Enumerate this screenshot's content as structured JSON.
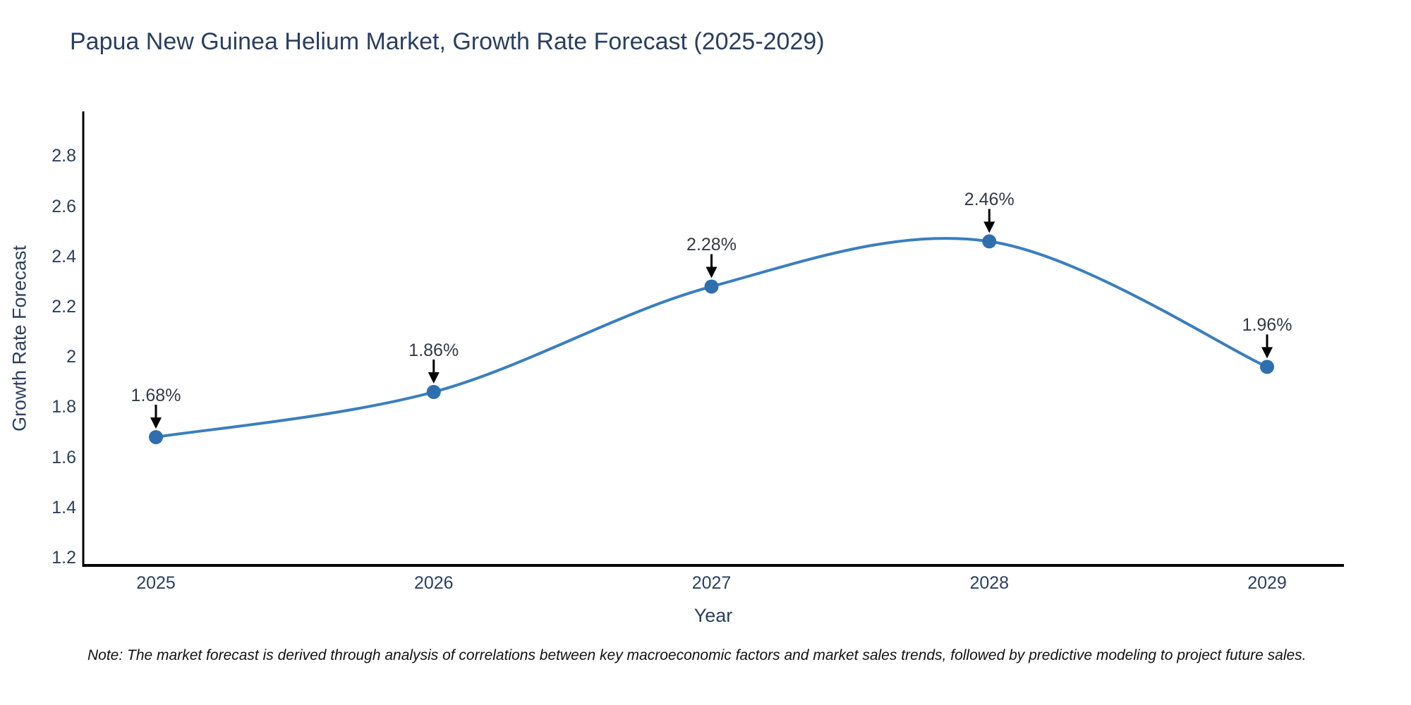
{
  "chart_data": {
    "type": "line",
    "title": "Papua New Guinea Helium Market, Growth Rate Forecast (2025-2029)",
    "xlabel": "Year",
    "ylabel": "Growth Rate Forecast",
    "x": [
      2025,
      2026,
      2027,
      2028,
      2029
    ],
    "values": [
      1.68,
      1.86,
      2.28,
      2.46,
      1.96
    ],
    "point_labels": [
      "1.68%",
      "1.86%",
      "2.28%",
      "2.46%",
      "1.96%"
    ],
    "x_tick_labels": [
      "2025",
      "2026",
      "2027",
      "2028",
      "2029"
    ],
    "y_tick_labels": [
      "1.2",
      "1.4",
      "1.6",
      "1.8",
      "2",
      "2.2",
      "2.4",
      "2.6",
      "2.8"
    ],
    "y_tick_values": [
      1.2,
      1.4,
      1.6,
      1.8,
      2.0,
      2.2,
      2.4,
      2.6,
      2.8
    ],
    "ylim": [
      1.17,
      2.98
    ],
    "grid": false,
    "legend": false,
    "line_shape": "spline",
    "marker": "circle"
  },
  "note": "Note: The market forecast is derived through analysis of correlations between key macroeconomic factors and market sales trends, followed by predictive modeling to project future sales.",
  "colors": {
    "line": "#3a7ebf",
    "marker": "#2f6fad",
    "axis": "#000000",
    "chart_text": "#2a3f5f",
    "annotation_text": "#333a45",
    "arrow": "#000000",
    "note_text": "#111111",
    "background": "#ffffff"
  }
}
